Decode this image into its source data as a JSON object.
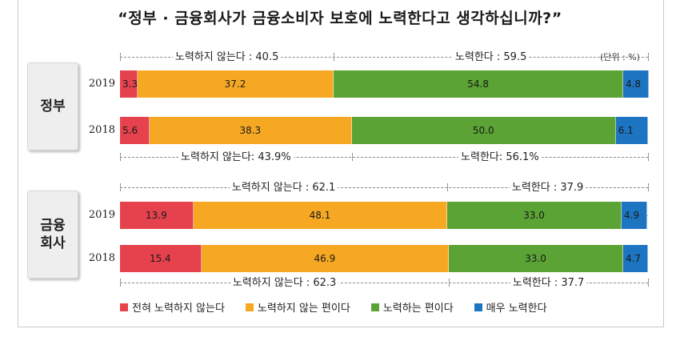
{
  "title": "“정부 · 금융회사가 금융소비자 보호에 노력한다고 생각하십니까?”",
  "unit": "(단위 : %)",
  "colors": {
    "not_at_all": "#e5424d",
    "somewhat_not": "#f6a823",
    "somewhat": "#5aa334",
    "very": "#1d75c2"
  },
  "legend": [
    {
      "label": "전혀 노력하지 않는다",
      "color": "#e5424d"
    },
    {
      "label": "노력하지 않는 편이다",
      "color": "#f6a823"
    },
    {
      "label": "노력하는 편이다",
      "color": "#5aa334"
    },
    {
      "label": "매우 노력한다",
      "color": "#1d75c2"
    }
  ],
  "groups": [
    {
      "label": "정부",
      "brace_top": {
        "left": "노력하지 않는다 : 40.5",
        "right": "노력한다 : 59.5"
      },
      "brace_bottom": {
        "left": "노력하지 않는다: 43.9%",
        "right": "노력한다: 56.1%"
      }
    },
    {
      "label": "금융\n회사",
      "brace_top": {
        "left": "노력하지 않는다 : 62.1",
        "right": "노력한다 : 37.9"
      },
      "brace_bottom": {
        "left": "노력하지 않는다 : 62.3",
        "right": "노력한다 : 37.7"
      }
    }
  ],
  "chart_data": {
    "type": "bar",
    "stacked": true,
    "orientation": "horizontal",
    "title": "“정부 · 금융회사가 금융소비자 보호에 노력한다고 생각하십니까?”",
    "unit": "(단위 : %)",
    "categories": [
      "2019",
      "2018",
      "2019",
      "2018"
    ],
    "category_groups": [
      "정부",
      "정부",
      "금융회사",
      "금융회사"
    ],
    "series": [
      {
        "name": "전혀 노력하지 않는다",
        "values": [
          3.3,
          5.6,
          13.9,
          15.4
        ]
      },
      {
        "name": "노력하지 않는 편이다",
        "values": [
          37.2,
          38.3,
          48.1,
          46.9
        ]
      },
      {
        "name": "노력하는 편이다",
        "values": [
          54.8,
          50.0,
          33.0,
          33.0
        ]
      },
      {
        "name": "매우 노력한다",
        "values": [
          4.8,
          6.1,
          4.9,
          4.7
        ]
      }
    ],
    "value_labels": [
      [
        "3.3",
        "37.2",
        "54.8",
        "4.8"
      ],
      [
        "5.6",
        "38.3",
        "50.0",
        "6.1"
      ],
      [
        "13.9",
        "48.1",
        "33.0",
        "4.9"
      ],
      [
        "15.4",
        "46.9",
        "33.0",
        "4.7"
      ]
    ],
    "xlim": [
      0,
      100
    ],
    "legend_position": "bottom"
  }
}
